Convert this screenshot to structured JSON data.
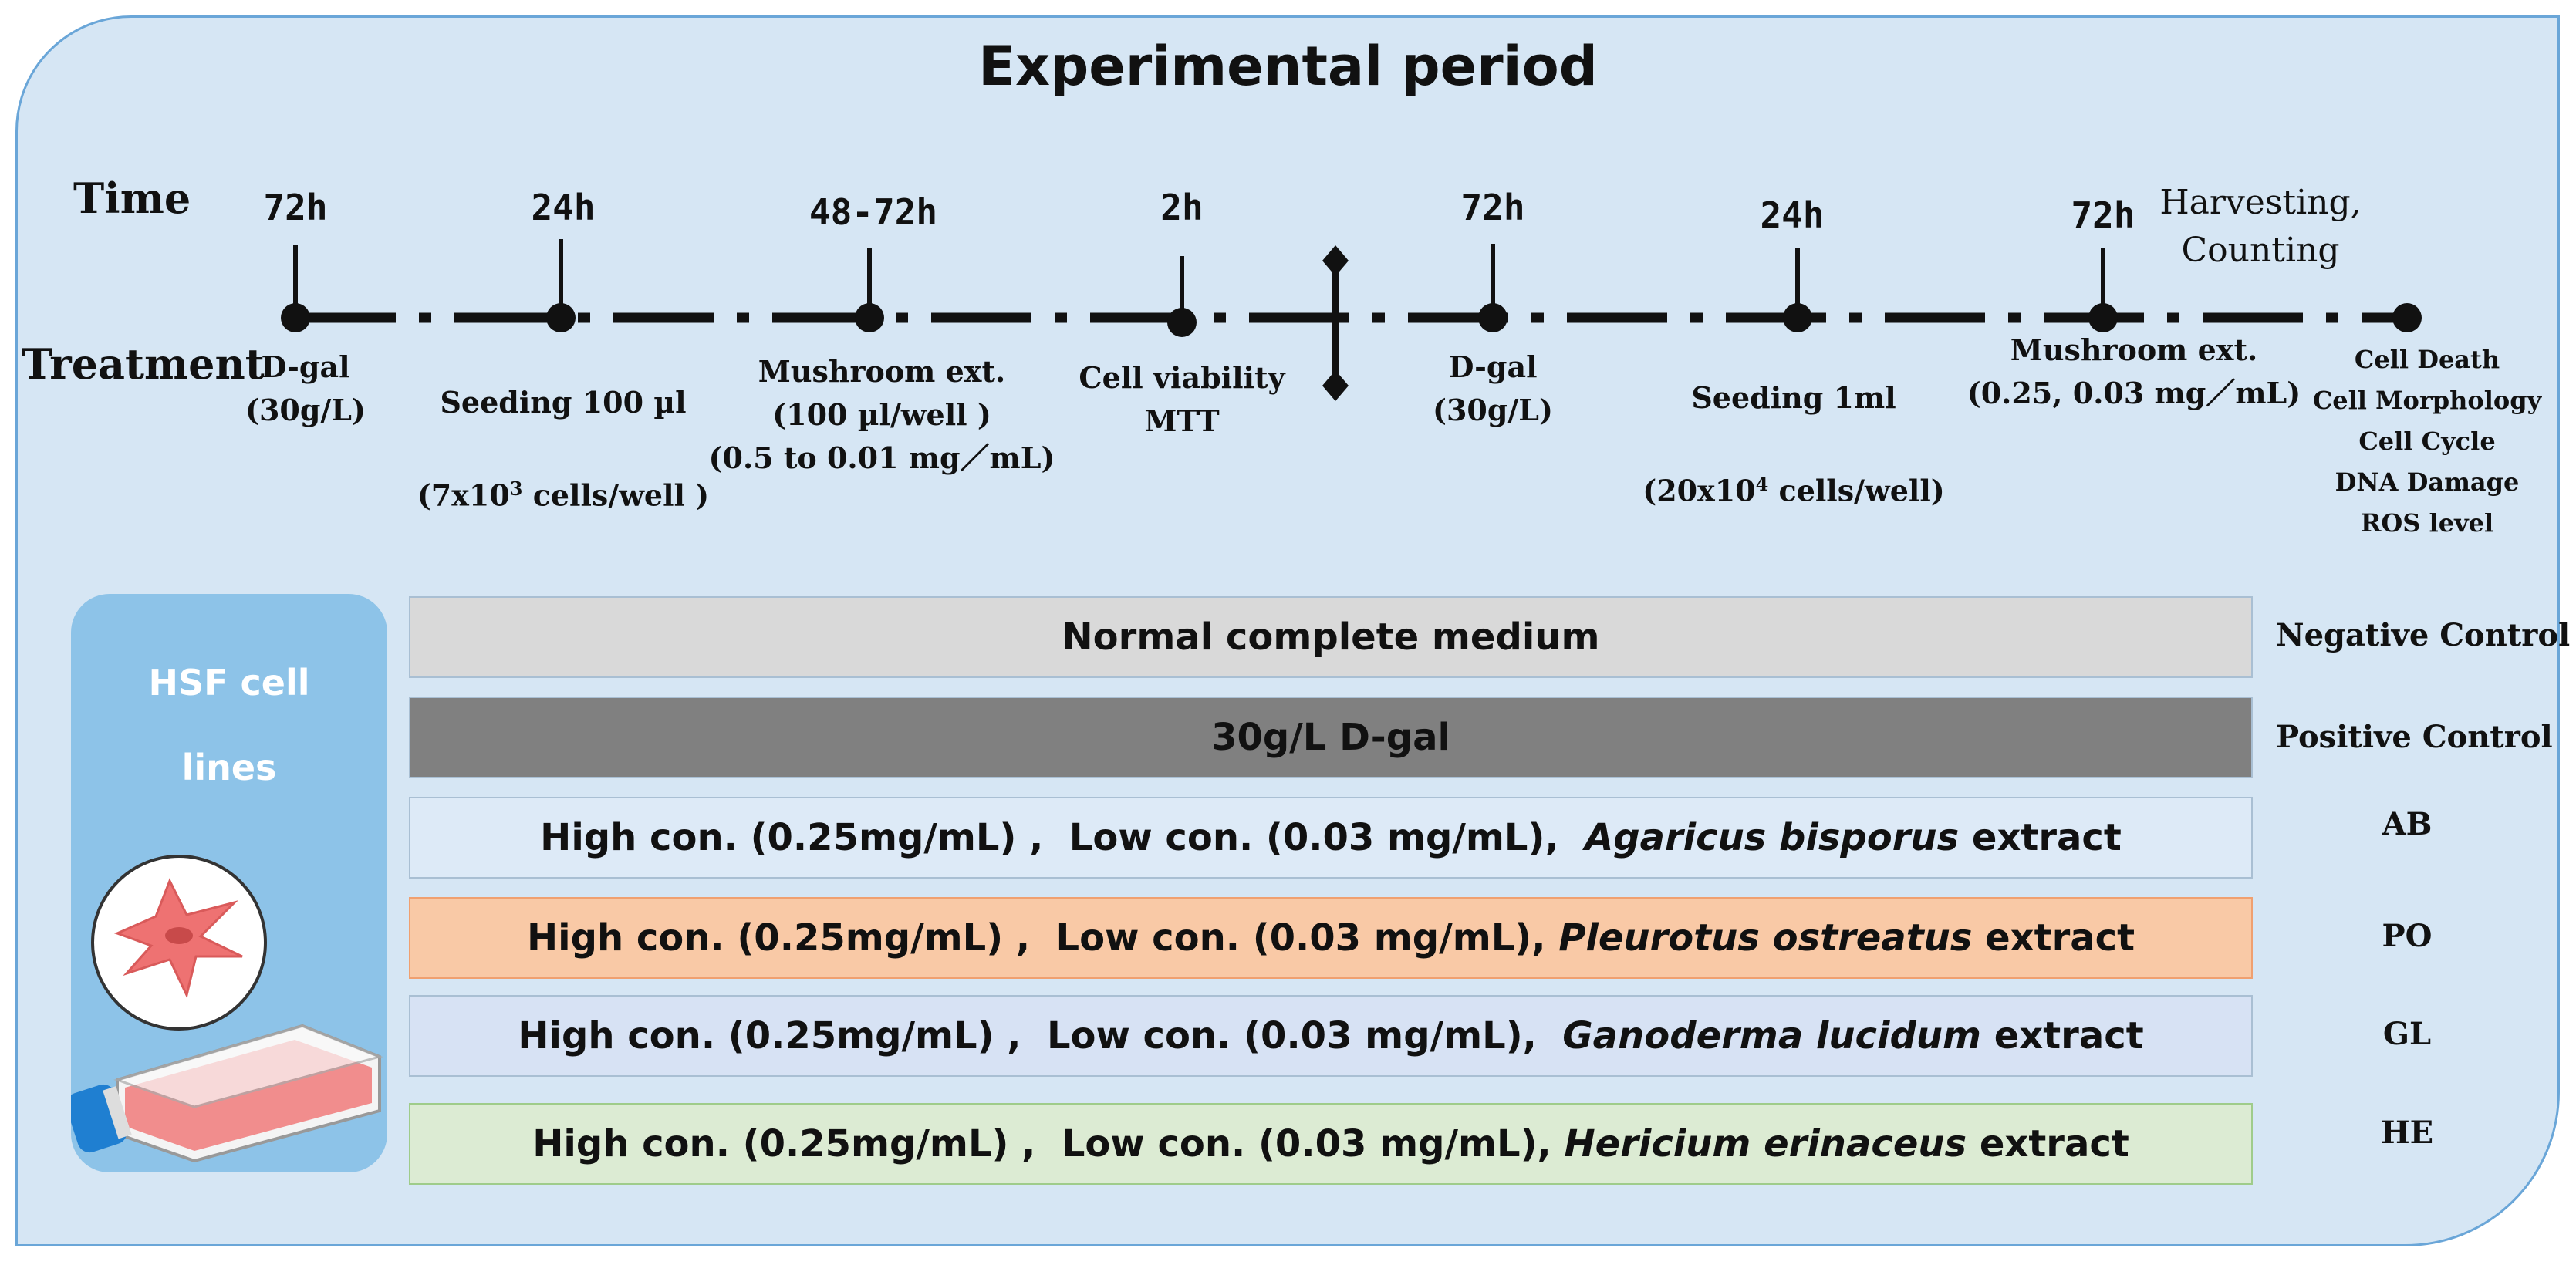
{
  "title": "Experimental period",
  "row_labels": {
    "time": "Time",
    "treatment": "Treatment"
  },
  "timeline": [
    {
      "time": "72h",
      "treatment": "D-gal\n(30g/L)"
    },
    {
      "time": "24h",
      "treatment_line1_pre": "Seeding 100 µl",
      "treatment_line2_pre": "(7x10",
      "treatment_line2_sup": "3",
      "treatment_line2_post": " cells/well )"
    },
    {
      "time": "48-72h",
      "treatment": "Mushroom ext.\n(100 µl/well )\n(0.5 to 0.01 mg／mL)"
    },
    {
      "time": "2h",
      "treatment": "Cell viability\nMTT"
    },
    {
      "time": "72h",
      "treatment": "D-gal\n(30g/L)"
    },
    {
      "time": "24h",
      "treatment_line1_pre": "Seeding 1ml",
      "treatment_line2_pre": "(20x10",
      "treatment_line2_sup": "4",
      "treatment_line2_post": " cells/well)"
    },
    {
      "time": "72h",
      "treatment": "Mushroom ext.\n(0.25, 0.03 mg／mL)"
    }
  ],
  "harvest": {
    "line1": "Harvesting,",
    "line2": "Counting"
  },
  "assays": [
    "Cell Death",
    "Cell Morphology",
    "Cell Cycle",
    "DNA Damage",
    "ROS level"
  ],
  "cell_lines": {
    "line1": "HSF cell",
    "line2": "lines"
  },
  "groups": [
    {
      "text": "Normal complete medium",
      "label": "Negative Control",
      "color": "#d9d9d9"
    },
    {
      "text": "30g/L D-gal",
      "label": "Positive Control",
      "color": "#808080"
    },
    {
      "prefix": "High con. (0.25mg/mL) ,  Low con. (0.03 mg/mL),  ",
      "species": "Agaricus bisporus",
      "suffix": " extract",
      "label": "AB",
      "color": "#ddeaf7"
    },
    {
      "prefix": "High con. (0.25mg/mL) ,  Low con. (0.03 mg/mL), ",
      "species": "Pleurotus ostreatus",
      "suffix": " extract",
      "label": "PO",
      "color": "#f9c9a6"
    },
    {
      "prefix": "High con. (0.25mg/mL) ,  Low con. (0.03 mg/mL),  ",
      "species": "Ganoderma lucidum",
      "suffix": " extract",
      "label": "GL",
      "color": "#d7e2f4"
    },
    {
      "prefix": "High con. (0.25mg/mL) ,  Low con. (0.03 mg/mL), ",
      "species": "Hericium erinaceus",
      "suffix": " extract",
      "label": "HE",
      "color": "#dcebd3"
    }
  ],
  "colors": {
    "background": "#d6e6f4",
    "border": "#6aa6d8",
    "cell_box": "#8dc3e8",
    "timeline": "#111111"
  }
}
